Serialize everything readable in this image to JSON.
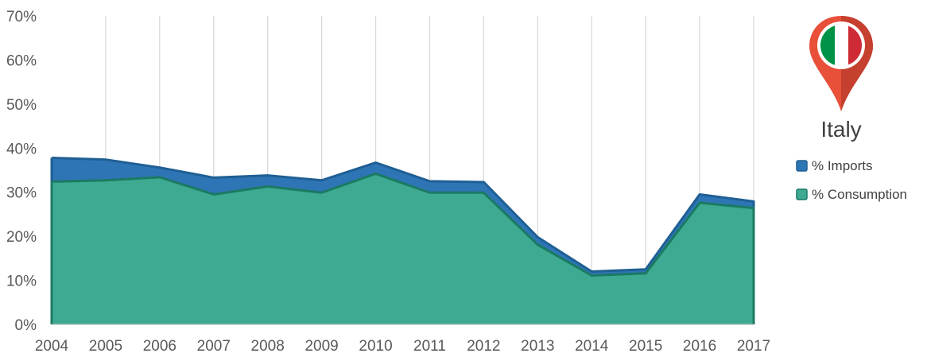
{
  "chart_data": {
    "type": "area",
    "title": "",
    "xlabel": "",
    "ylabel": "",
    "x": [
      "2004",
      "2005",
      "2006",
      "2007",
      "2008",
      "2009",
      "2010",
      "2011",
      "2012",
      "2013",
      "2014",
      "2015",
      "2016",
      "2017"
    ],
    "ylim": [
      0,
      70
    ],
    "y_ticks": [
      "0%",
      "10%",
      "20%",
      "30%",
      "40%",
      "50%",
      "60%",
      "70%"
    ],
    "y_tick_values": [
      0,
      10,
      20,
      30,
      40,
      50,
      60,
      70
    ],
    "grid": "vertical",
    "stacked": false,
    "series": [
      {
        "name": "% Imports",
        "color": "#2E75B6",
        "edge": "#1F5F94",
        "values": [
          37.8,
          37.4,
          35.6,
          33.3,
          33.8,
          32.7,
          36.7,
          32.5,
          32.3,
          19.8,
          12.0,
          12.5,
          29.5,
          27.9
        ]
      },
      {
        "name": "% Consumption",
        "color": "#3DAA91",
        "edge": "#1B7A62",
        "values": [
          32.4,
          32.7,
          33.4,
          29.5,
          31.3,
          29.9,
          34.2,
          29.9,
          29.9,
          18.1,
          11.1,
          11.6,
          27.6,
          26.4
        ]
      }
    ],
    "legend_position": "right"
  },
  "country": {
    "name": "Italy",
    "flag_colors": [
      "#009246",
      "#FFFFFF",
      "#CE2B37"
    ],
    "pin_color": "#E8503A",
    "pin_shadow": "#C5402E"
  }
}
